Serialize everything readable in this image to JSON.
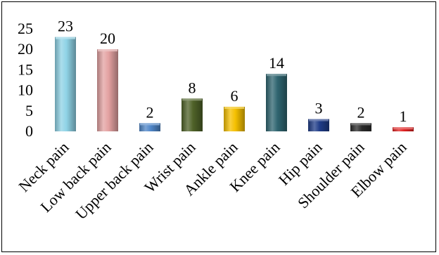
{
  "chart_data": {
    "type": "bar",
    "title": "",
    "xlabel": "",
    "ylabel": "",
    "ylim": [
      0,
      25
    ],
    "yticks": [
      0,
      5,
      10,
      15,
      20,
      25
    ],
    "grid": false,
    "legend": "none",
    "categories": [
      "Neck pain",
      "Low back pain",
      "Upper back pain",
      "Wrist pain",
      "Ankle pain",
      "Knee pain",
      "Hip pain",
      "Shoulder pain",
      "Elbow pain"
    ],
    "values": [
      23,
      20,
      2,
      8,
      6,
      14,
      3,
      2,
      1
    ],
    "colors": [
      "#8fd3e6",
      "#e3a1a1",
      "#4f86c8",
      "#4f6228",
      "#f5c000",
      "#2f6570",
      "#1f3c88",
      "#2b2b2b",
      "#e02020"
    ]
  }
}
